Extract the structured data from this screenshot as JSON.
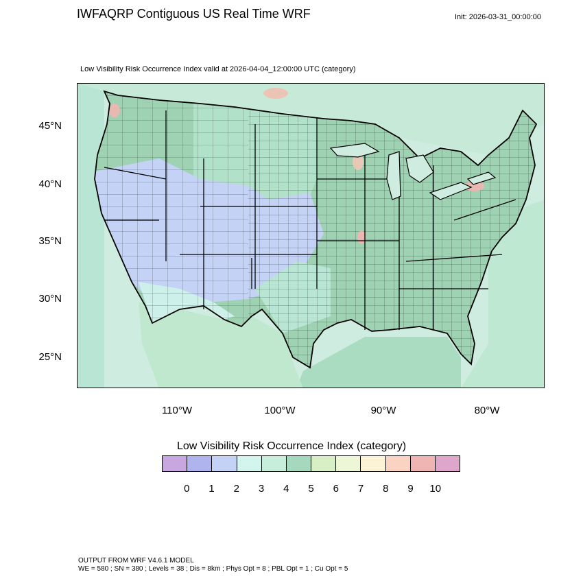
{
  "header": {
    "title": "IWFAQRP Contiguous US Real Time WRF",
    "init": "Init: 2026-03-31_00:00:00"
  },
  "map": {
    "subtitle": "Low Visibility Risk Occurrence Index valid at 2026-04-04_12:00:00 UTC   (category)",
    "lat_labels": [
      "45°N",
      "40°N",
      "35°N",
      "30°N",
      "25°N"
    ],
    "lon_labels": [
      "110°W",
      "100°W",
      "90°W",
      "80°W"
    ],
    "colors": {
      "water": "#d6eee0",
      "ocean_west": "#b9e6d4",
      "gulf": "#9fd5b8",
      "east_land": "#9ed2b3",
      "plains": "#b2e1c9",
      "west_blue": "#c4d2f6",
      "desert": "#cdf1ea",
      "mexico": "#bfe8cf",
      "canada": "#c6ead7",
      "hotspot": "#f0b5b0",
      "border": "#000000"
    }
  },
  "colorbar": {
    "title": "Low Visibility Risk Occurrence Index  (category)",
    "labels": [
      "0",
      "1",
      "2",
      "3",
      "4",
      "5",
      "6",
      "7",
      "8",
      "9",
      "10"
    ],
    "colors": [
      "#c8a6df",
      "#b0b4ee",
      "#c4d2f6",
      "#d4f5ee",
      "#c6eedb",
      "#a6d8bd",
      "#d8efc6",
      "#eef6d8",
      "#fcf2d6",
      "#fbd3c3",
      "#efb5b2",
      "#dea6ca"
    ]
  },
  "footer": {
    "line1": "OUTPUT FROM WRF V4.6.1 MODEL",
    "line2": "WE = 580 ; SN = 380 ; Levels = 38 ; Dis = 8km ; Phys Opt = 8 ; PBL Opt = 1 ; Cu Opt = 5"
  }
}
